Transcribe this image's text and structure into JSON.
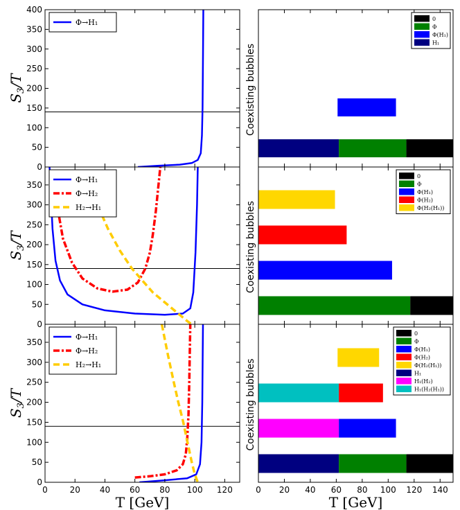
{
  "chart_data": [
    {
      "type": "line",
      "panel": "left-top",
      "ylabel": "S_3/T",
      "xlim": [
        0,
        130
      ],
      "ylim": [
        0,
        400
      ],
      "yticks": [
        "0",
        "50",
        "100",
        "150",
        "200",
        "250",
        "300",
        "350",
        "400"
      ],
      "hline": 140,
      "legend_position": "top-left",
      "series": [
        {
          "name": "Φ→H₁",
          "color": "#0000ff",
          "style": "solid",
          "x": [
            62,
            75,
            90,
            98,
            102,
            104,
            104.8,
            105.2,
            105.5,
            105.7
          ],
          "y": [
            0,
            3,
            6,
            10,
            18,
            35,
            80,
            150,
            280,
            400
          ]
        }
      ]
    },
    {
      "type": "line",
      "panel": "left-middle",
      "ylabel": "S_3/T",
      "xlim": [
        0,
        130
      ],
      "ylim": [
        0,
        395
      ],
      "yticks": [
        "0",
        "50",
        "100",
        "150",
        "200",
        "250",
        "300",
        "350"
      ],
      "hline": 140,
      "legend_position": "top-left",
      "series": [
        {
          "name": "Φ→H₁",
          "color": "#0000ff",
          "style": "solid",
          "x": [
            3,
            5,
            7,
            10,
            15,
            25,
            40,
            60,
            80,
            92,
            97,
            99,
            100.5,
            101.5,
            102
          ],
          "y": [
            395,
            240,
            160,
            110,
            75,
            50,
            35,
            27,
            24,
            27,
            40,
            80,
            180,
            300,
            395
          ]
        },
        {
          "name": "Φ→H₂",
          "color": "#ff0000",
          "style": "dashdot",
          "x": [
            8,
            12,
            18,
            25,
            35,
            45,
            55,
            62,
            67,
            70,
            72,
            74,
            75.5,
            77
          ],
          "y": [
            300,
            215,
            155,
            115,
            90,
            82,
            87,
            105,
            140,
            180,
            225,
            285,
            340,
            395
          ]
        },
        {
          "name": "H₂→H₁",
          "color": "#ffcc00",
          "style": "dashed",
          "x": [
            30,
            35,
            42,
            50,
            58,
            65,
            72,
            80,
            88,
            95,
            98
          ],
          "y": [
            340,
            300,
            240,
            185,
            140,
            110,
            80,
            55,
            30,
            8,
            0
          ]
        }
      ]
    },
    {
      "type": "line",
      "panel": "left-bottom",
      "ylabel": "S_3/T",
      "xlabel": "T [GeV]",
      "xlim": [
        0,
        130
      ],
      "ylim": [
        0,
        395
      ],
      "xticks": [
        "0",
        "20",
        "40",
        "60",
        "80",
        "100",
        "120"
      ],
      "yticks": [
        "0",
        "50",
        "100",
        "150",
        "200",
        "250",
        "300",
        "350"
      ],
      "hline": 140,
      "legend_position": "top-left",
      "series": [
        {
          "name": "Φ→H₁",
          "color": "#0000ff",
          "style": "solid",
          "x": [
            63,
            80,
            95,
            101,
            103.5,
            104.5,
            105,
            105.3,
            105.5
          ],
          "y": [
            0,
            5,
            10,
            20,
            45,
            100,
            200,
            320,
            395
          ]
        },
        {
          "name": "Φ→H₂",
          "color": "#ff0000",
          "style": "dashdot",
          "x": [
            60,
            70,
            80,
            88,
            92,
            94,
            95,
            95.8,
            96.3,
            96.7,
            97
          ],
          "y": [
            12,
            15,
            20,
            30,
            45,
            70,
            110,
            170,
            250,
            330,
            395
          ]
        },
        {
          "name": "H₂→H₁",
          "color": "#ffcc00",
          "style": "dashed",
          "x": [
            78,
            82,
            86,
            89,
            92,
            94,
            96,
            98,
            100,
            102
          ],
          "y": [
            395,
            320,
            250,
            200,
            155,
            120,
            85,
            50,
            20,
            0
          ]
        }
      ]
    },
    {
      "type": "bar",
      "panel": "right-top",
      "ylabel": "Coexisting bubbles",
      "xlim": [
        0,
        150
      ],
      "legend_position": "top-right",
      "legend": [
        {
          "label": "0",
          "color": "#000000"
        },
        {
          "label": "Φ",
          "color": "#008000"
        },
        {
          "label": "Φ(H₁)",
          "color": "#0000ff"
        },
        {
          "label": "H₁",
          "color": "#000080"
        }
      ],
      "rows": [
        [
          {
            "from": 0,
            "to": 62,
            "color": "#000080"
          },
          {
            "from": 62,
            "to": 114,
            "color": "#008000"
          },
          {
            "from": 114,
            "to": 150,
            "color": "#000000"
          }
        ],
        [
          {
            "from": 61,
            "to": 106,
            "color": "#0000ff"
          }
        ]
      ]
    },
    {
      "type": "bar",
      "panel": "right-middle",
      "ylabel": "Coexisting bubbles",
      "xlim": [
        0,
        150
      ],
      "legend_position": "top-right",
      "legend": [
        {
          "label": "0",
          "color": "#000000"
        },
        {
          "label": "Φ",
          "color": "#008000"
        },
        {
          "label": "Φ(H₁)",
          "color": "#0000ff"
        },
        {
          "label": "Φ(H₂)",
          "color": "#ff0000"
        },
        {
          "label": "Φ(H₂(H₁))",
          "color": "#ffd700"
        }
      ],
      "rows": [
        [
          {
            "from": 0,
            "to": 117,
            "color": "#008000"
          },
          {
            "from": 117,
            "to": 150,
            "color": "#000000"
          }
        ],
        [
          {
            "from": 0,
            "to": 103,
            "color": "#0000ff"
          }
        ],
        [
          {
            "from": 0,
            "to": 68,
            "color": "#ff0000"
          }
        ],
        [
          {
            "from": 0,
            "to": 59,
            "color": "#ffd700"
          }
        ]
      ]
    },
    {
      "type": "bar",
      "panel": "right-bottom",
      "ylabel": "Coexisting bubbles",
      "xlabel": "T [GeV]",
      "xlim": [
        0,
        150
      ],
      "xticks": [
        "0",
        "20",
        "40",
        "60",
        "80",
        "100",
        "120",
        "140"
      ],
      "legend_position": "top-right",
      "legend": [
        {
          "label": "0",
          "color": "#000000"
        },
        {
          "label": "Φ",
          "color": "#008000"
        },
        {
          "label": "Φ(H₁)",
          "color": "#0000ff"
        },
        {
          "label": "Φ(H₂)",
          "color": "#ff0000"
        },
        {
          "label": "Φ(H₂(H₁))",
          "color": "#ffd700"
        },
        {
          "label": "H₁",
          "color": "#000080"
        },
        {
          "label": "H₁(H₂)",
          "color": "#ff00ff"
        },
        {
          "label": "H₁(H₂(H₁))",
          "color": "#00c0c0"
        }
      ],
      "rows": [
        [
          {
            "from": 0,
            "to": 62,
            "color": "#000080"
          },
          {
            "from": 62,
            "to": 114,
            "color": "#008000"
          },
          {
            "from": 114,
            "to": 150,
            "color": "#000000"
          }
        ],
        [
          {
            "from": 0,
            "to": 62,
            "color": "#ff00ff"
          },
          {
            "from": 62,
            "to": 106,
            "color": "#0000ff"
          }
        ],
        [
          {
            "from": 0,
            "to": 62,
            "color": "#00c0c0"
          },
          {
            "from": 62,
            "to": 96,
            "color": "#ff0000"
          }
        ],
        [
          {
            "from": 61,
            "to": 93,
            "color": "#ffd700"
          }
        ]
      ]
    }
  ]
}
